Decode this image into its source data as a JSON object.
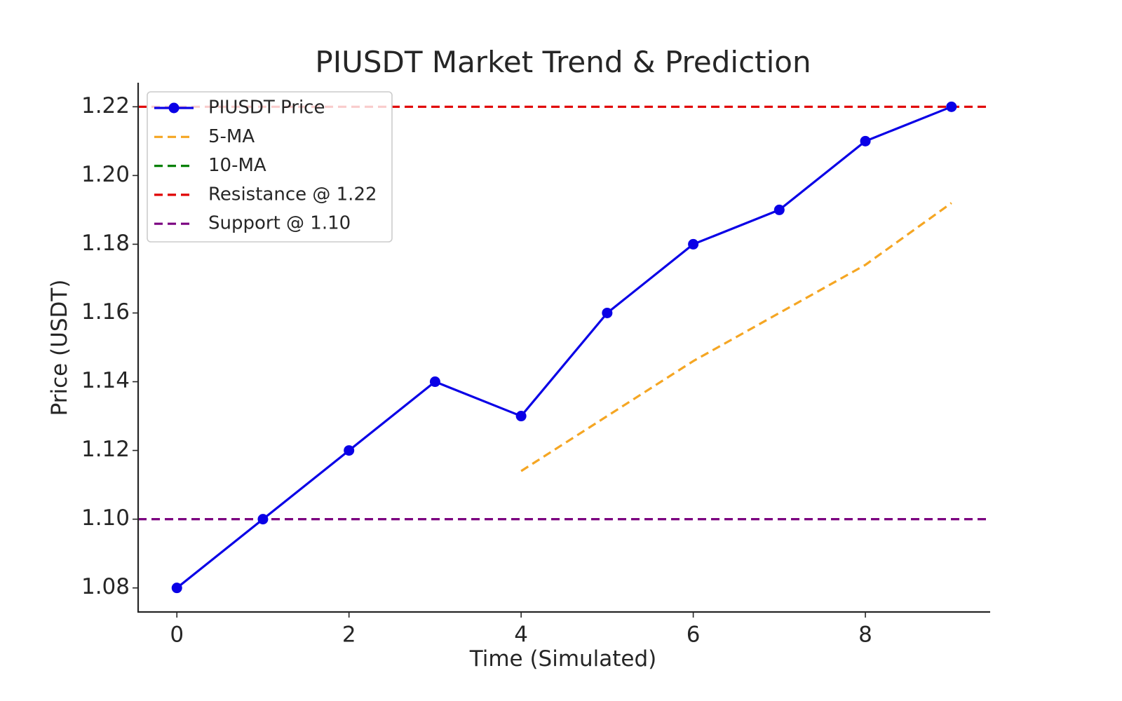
{
  "chart_data": {
    "type": "line",
    "title": "PIUSDT Market Trend & Prediction",
    "xlabel": "Time (Simulated)",
    "ylabel": "Price (USDT)",
    "xlim": [
      -0.45,
      9.45
    ],
    "ylim": [
      1.073,
      1.227
    ],
    "x_ticks": [
      0,
      2,
      4,
      6,
      8
    ],
    "y_ticks": [
      1.08,
      1.1,
      1.12,
      1.14,
      1.16,
      1.18,
      1.2,
      1.22
    ],
    "x_tick_labels": [
      "0",
      "2",
      "4",
      "6",
      "8"
    ],
    "y_tick_labels": [
      "1.08",
      "1.10",
      "1.12",
      "1.14",
      "1.16",
      "1.18",
      "1.20",
      "1.22"
    ],
    "grid": false,
    "legend_position": "top-left",
    "series": [
      {
        "name": "PIUSDT Price",
        "style": "solid-markers",
        "color": "#0a00e6",
        "x": [
          0,
          1,
          2,
          3,
          4,
          5,
          6,
          7,
          8,
          9
        ],
        "values": [
          1.08,
          1.1,
          1.12,
          1.14,
          1.13,
          1.16,
          1.18,
          1.19,
          1.21,
          1.22
        ]
      },
      {
        "name": "5-MA",
        "style": "dashed",
        "color": "#f5a623",
        "x": [
          4,
          5,
          6,
          7,
          8,
          9
        ],
        "values": [
          1.114,
          1.13,
          1.146,
          1.16,
          1.174,
          1.192
        ]
      },
      {
        "name": "10-MA",
        "style": "dashed",
        "color": "#008000",
        "x": [],
        "values": []
      },
      {
        "name": "Resistance @ 1.22",
        "style": "hline",
        "color": "#e00000",
        "value": 1.22
      },
      {
        "name": "Support @ 1.10",
        "style": "hline",
        "color": "#7b0080",
        "value": 1.1
      }
    ]
  }
}
